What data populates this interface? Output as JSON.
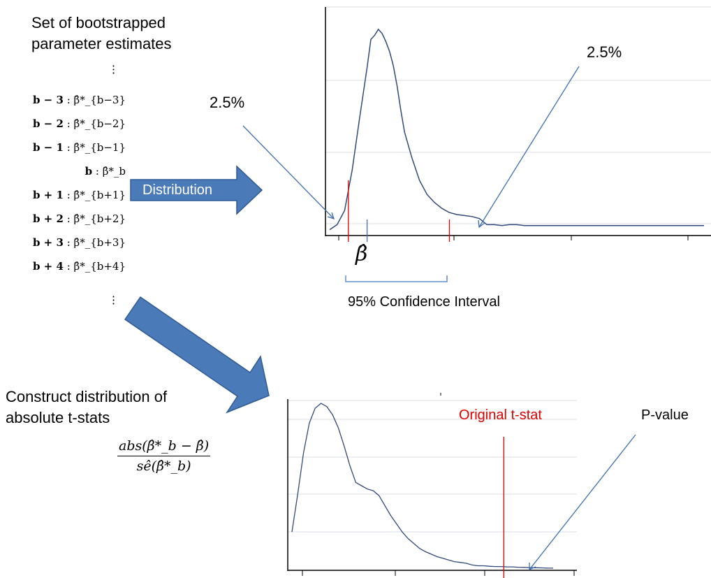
{
  "left_panel": {
    "title_line1": "Set of bootstrapped",
    "title_line2": "parameter estimates",
    "rows": [
      {
        "index": "b − 3",
        "value": "β̂*_{b−3}"
      },
      {
        "index": "b − 2",
        "value": "β̂*_{b−2}"
      },
      {
        "index": "b − 1",
        "value": "β̂*_{b−1}"
      },
      {
        "index": "b",
        "value": "β̂*_b"
      },
      {
        "index": "b + 1",
        "value": "β̂*_{b+1}"
      },
      {
        "index": "b + 2",
        "value": "β̂*_{b+2}"
      },
      {
        "index": "b + 3",
        "value": "β̂*_{b+3}"
      },
      {
        "index": "b + 4",
        "value": "β̂*_{b+4}"
      }
    ]
  },
  "arrow_distribution": {
    "label": "Distribution",
    "color": "#4a7ab8"
  },
  "top_chart": {
    "left_tail_label": "2.5%",
    "right_tail_label": "2.5%",
    "estimate_label": "β̂",
    "interval_label": "95% Confidence Interval",
    "line_color": "#2f4a7a",
    "marker_color": "#e00000",
    "arrow_color": "#3e6fb0"
  },
  "bottom_section": {
    "title_line1": "Construct distribution of",
    "title_line2": "absolute t-stats",
    "formula_numerator": "abs(β̂*_b − β̂)",
    "formula_denominator": "sê(β̂*_b)",
    "original_label": "Original t-stat",
    "original_color": "#e00000",
    "pvalue_label": "P-value"
  },
  "chart_data": [
    {
      "type": "line",
      "title": "",
      "xlabel": "",
      "ylabel": "",
      "x": [
        0,
        2,
        4,
        6,
        8,
        10,
        11,
        12,
        13,
        14,
        15,
        16,
        17,
        18,
        19,
        20,
        22,
        24,
        26,
        28,
        30,
        32,
        34,
        36,
        38,
        40,
        42,
        44,
        46,
        48,
        50,
        52,
        54,
        56,
        58,
        60,
        62,
        64,
        66,
        68,
        70,
        75,
        80,
        85,
        90,
        95,
        100
      ],
      "y": [
        0.5,
        3,
        10,
        30,
        56,
        81,
        95,
        97,
        100,
        98,
        94,
        89,
        82,
        72,
        60,
        49,
        36,
        25,
        18,
        14,
        11,
        9,
        8,
        7.5,
        7,
        6,
        3,
        3,
        2.5,
        3,
        3,
        2.5,
        2.5,
        2.5,
        2.5,
        2.5,
        2.5,
        2.5,
        2.5,
        2.5,
        2.5,
        2.5,
        2.5,
        2.5,
        2.5,
        2.5,
        2.5
      ],
      "markers": {
        "ci_lower": 5,
        "estimate": 10,
        "ci_upper": 32
      }
    },
    {
      "type": "line",
      "title": "",
      "xlabel": "",
      "ylabel": "",
      "x": [
        0,
        2,
        4,
        6,
        8,
        10,
        12,
        14,
        16,
        18,
        20,
        22,
        24,
        26,
        28,
        30,
        32,
        34,
        36,
        38,
        40,
        42,
        44,
        46,
        48,
        50,
        52,
        54,
        56,
        58,
        60,
        62,
        64,
        66,
        68,
        70,
        72,
        74,
        76,
        78,
        80,
        82,
        84,
        86,
        88,
        90
      ],
      "y": [
        22,
        45,
        70,
        88,
        97,
        100,
        98,
        93,
        85,
        74,
        62,
        52,
        50,
        48,
        47,
        44,
        38,
        32,
        27,
        22,
        18,
        15,
        12,
        10,
        8.5,
        7,
        6,
        5,
        4,
        3.5,
        3,
        2,
        1.5,
        1.5,
        1.2,
        1,
        1,
        0.8,
        0.8,
        0.6,
        0.5,
        0.4,
        0.3,
        0.2,
        0.1,
        0.05
      ],
      "original_t_stat_x": 73
    }
  ]
}
